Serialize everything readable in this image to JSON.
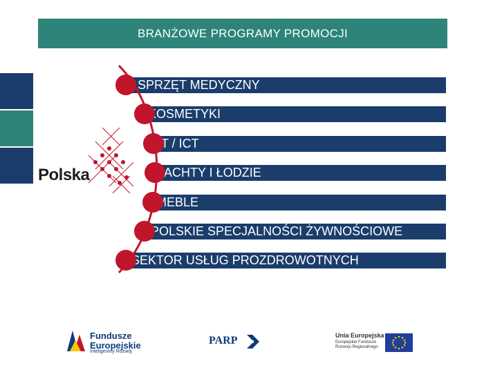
{
  "header": {
    "title": "BRANŻOWE PROGRAMY PROMOCJI"
  },
  "programs": [
    {
      "label": "SPRZĘT MEDYCZNY"
    },
    {
      "label": "KOSMETYKI"
    },
    {
      "label": "IT / ICT"
    },
    {
      "label": "JACHTY I ŁODZIE"
    },
    {
      "label": "MEBLE"
    },
    {
      "label": "POLSKIE SPECJALNOŚCI ŻYWNOŚCIOWE"
    },
    {
      "label": "SEKTOR USŁUG PROZDROWOTNYCH"
    }
  ],
  "brand": {
    "polska_logo": "Polska"
  },
  "footer": {
    "fe_title": "Fundusze Europejskie",
    "fe_line1": "Fundusze",
    "fe_line2": "Europejskie",
    "fe_sub": "Inteligentny Rozwój",
    "parp": "PARP",
    "ue_title": "Unia Europejska",
    "ue_sub1": "Europejskie Fundusze",
    "ue_sub2": "Rozwoju Regionalnego"
  },
  "colors": {
    "title_bg": "#2e8478",
    "row_bg": "#1a3d6b",
    "bullet": "#c0152a",
    "side_blue": "#1a3d6b",
    "side_teal": "#2e8478"
  }
}
